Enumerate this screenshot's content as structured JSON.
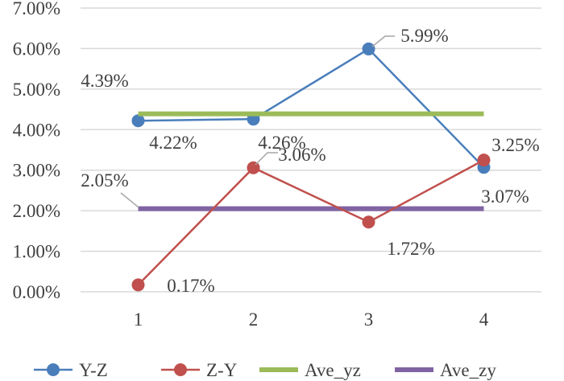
{
  "chart_data": {
    "type": "line",
    "title": "",
    "xlabel": "",
    "ylabel": "",
    "categories": [
      "1",
      "2",
      "3",
      "4"
    ],
    "ylim": [
      0,
      7
    ],
    "yticks": [
      "0.00%",
      "1.00%",
      "2.00%",
      "3.00%",
      "4.00%",
      "5.00%",
      "6.00%",
      "7.00%"
    ],
    "grid": true,
    "legend_position": "bottom",
    "series": [
      {
        "name": "Y-Z",
        "color": "#4a7ebb",
        "marker": true,
        "values": [
          4.22,
          4.26,
          5.99,
          3.07
        ],
        "labels": [
          "4.22%",
          "4.26%",
          "5.99%",
          "3.07%"
        ]
      },
      {
        "name": "Z-Y",
        "color": "#c0504d",
        "marker": true,
        "values": [
          0.17,
          3.06,
          1.72,
          3.25
        ],
        "labels": [
          "0.17%",
          "3.06%",
          "1.72%",
          "3.25%"
        ]
      },
      {
        "name": "Ave_yz",
        "color": "#9bbb59",
        "marker": false,
        "values": [
          4.39,
          4.39,
          4.39,
          4.39
        ],
        "labels": [
          "4.39%"
        ]
      },
      {
        "name": "Ave_zy",
        "color": "#8064a2",
        "marker": false,
        "values": [
          2.05,
          2.05,
          2.05,
          2.05
        ],
        "labels": [
          "2.05%"
        ]
      }
    ]
  }
}
